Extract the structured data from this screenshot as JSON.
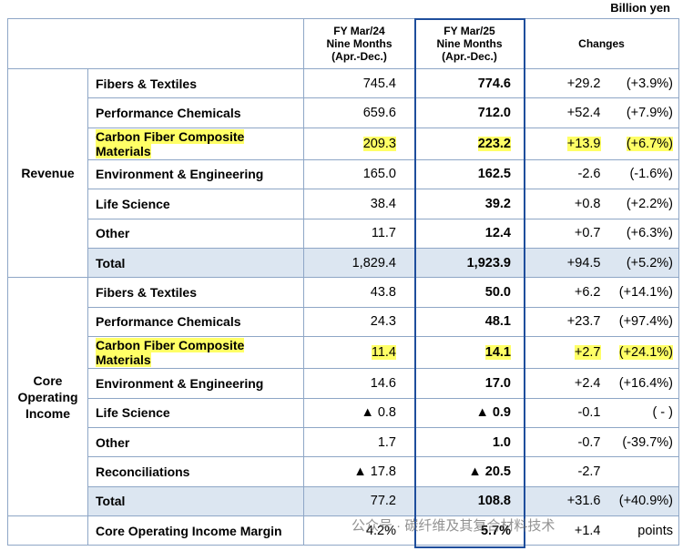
{
  "unit": "Billion yen",
  "header": {
    "fy24": [
      "FY Mar/24",
      "Nine Months",
      "(Apr.-Dec.)"
    ],
    "fy25": [
      "FY Mar/25",
      "Nine Months",
      "(Apr.-Dec.)"
    ],
    "changes": "Changes"
  },
  "sections": [
    {
      "label": [
        "Revenue"
      ],
      "rows": [
        {
          "item": [
            "Fibers & Textiles"
          ],
          "fy24": "745.4",
          "fy25": "774.6",
          "change": "+29.2",
          "pct": "(+3.9%)"
        },
        {
          "item": [
            "Performance Chemicals"
          ],
          "fy24": "659.6",
          "fy25": "712.0",
          "change": "+52.4",
          "pct": "(+7.9%)"
        },
        {
          "item": [
            "Carbon Fiber Composite",
            "Materials"
          ],
          "fy24": "209.3",
          "fy25": "223.2",
          "change": "+13.9",
          "pct": "(+6.7%)",
          "highlight": true
        },
        {
          "item": [
            "Environment & Engineering"
          ],
          "fy24": "165.0",
          "fy25": "162.5",
          "change": "-2.6",
          "pct": "(-1.6%)"
        },
        {
          "item": [
            "Life Science"
          ],
          "fy24": "38.4",
          "fy25": "39.2",
          "change": "+0.8",
          "pct": "(+2.2%)"
        },
        {
          "item": [
            "Other"
          ],
          "fy24": "11.7",
          "fy25": "12.4",
          "change": "+0.7",
          "pct": "(+6.3%)"
        },
        {
          "item": [
            "Total"
          ],
          "fy24": "1,829.4",
          "fy25": "1,923.9",
          "change": "+94.5",
          "pct": "(+5.2%)",
          "total": true
        }
      ]
    },
    {
      "label": [
        "Core",
        "Operating",
        "Income"
      ],
      "rows": [
        {
          "item": [
            "Fibers & Textiles"
          ],
          "fy24": "43.8",
          "fy25": "50.0",
          "change": "+6.2",
          "pct": "(+14.1%)"
        },
        {
          "item": [
            "Performance Chemicals"
          ],
          "fy24": "24.3",
          "fy25": "48.1",
          "change": "+23.7",
          "pct": "(+97.4%)"
        },
        {
          "item": [
            "Carbon Fiber Composite",
            "Materials"
          ],
          "fy24": "11.4",
          "fy25": "14.1",
          "change": "+2.7",
          "pct": "(+24.1%)",
          "highlight": true
        },
        {
          "item": [
            "Environment & Engineering"
          ],
          "fy24": "14.6",
          "fy25": "17.0",
          "change": "+2.4",
          "pct": "(+16.4%)"
        },
        {
          "item": [
            "Life Science"
          ],
          "fy24": "▲ 0.8",
          "fy25": "▲ 0.9",
          "change": "-0.1",
          "pct": "( - )"
        },
        {
          "item": [
            "Other"
          ],
          "fy24": "1.7",
          "fy25": "1.0",
          "change": "-0.7",
          "pct": "(-39.7%)"
        },
        {
          "item": [
            "Reconciliations"
          ],
          "fy24": "▲ 17.8",
          "fy25": "▲ 20.5",
          "change": "-2.7"
        },
        {
          "item": [
            "Total"
          ],
          "fy24": "77.2",
          "fy25": "108.8",
          "change": "+31.6",
          "pct": "(+40.9%)",
          "total": true
        }
      ]
    }
  ],
  "margin": {
    "item": [
      "Core Operating Income Margin"
    ],
    "fy24": "4.2%",
    "fy25": "5.7%",
    "change": "+1.4",
    "pct": "points"
  },
  "watermark": "公众号 · 碳纤维及其复合材料技术"
}
